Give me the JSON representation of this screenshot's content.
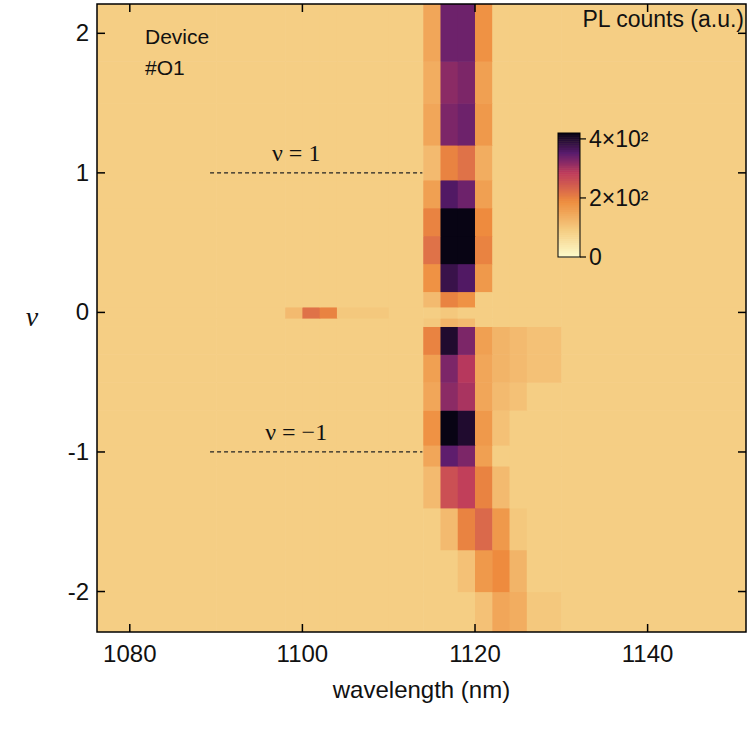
{
  "chart_data": {
    "type": "heatmap",
    "x_label": "wavelength (nm)",
    "y_label": "ν",
    "xlim": [
      1076.2,
      1151.4
    ],
    "ylim": [
      -2.29,
      2.21
    ],
    "xticks": [
      1080,
      1100,
      1120,
      1140
    ],
    "yticks": [
      -2,
      -1,
      0,
      1,
      2
    ],
    "x_edges": [
      1076.2,
      1090,
      1098,
      1100,
      1102,
      1104,
      1110,
      1114,
      1116,
      1118,
      1120,
      1122,
      1124,
      1126,
      1130,
      1151.4
    ],
    "y_edges": [
      -2.29,
      -2.0,
      -1.7,
      -1.4,
      -1.1,
      -0.95,
      -0.7,
      -0.5,
      -0.3,
      -0.1,
      -0.04,
      0.04,
      0.15,
      0.35,
      0.55,
      0.75,
      0.95,
      1.2,
      1.5,
      1.8,
      2.21
    ],
    "cells": [
      [
        90,
        90,
        90,
        90,
        90,
        90,
        90,
        90,
        90,
        90,
        110,
        150,
        140,
        100,
        90
      ],
      [
        90,
        90,
        90,
        90,
        90,
        90,
        90,
        90,
        90,
        110,
        170,
        190,
        130,
        90,
        90
      ],
      [
        90,
        90,
        90,
        90,
        90,
        90,
        90,
        90,
        120,
        200,
        230,
        170,
        100,
        90,
        90
      ],
      [
        90,
        90,
        90,
        90,
        90,
        90,
        90,
        120,
        260,
        280,
        200,
        120,
        90,
        90,
        90
      ],
      [
        90,
        90,
        90,
        90,
        90,
        90,
        90,
        150,
        350,
        330,
        160,
        90,
        90,
        90,
        90
      ],
      [
        90,
        90,
        90,
        90,
        90,
        90,
        90,
        180,
        430,
        400,
        170,
        110,
        90,
        90,
        90
      ],
      [
        90,
        90,
        90,
        90,
        90,
        90,
        90,
        150,
        320,
        300,
        150,
        120,
        110,
        90,
        90
      ],
      [
        90,
        90,
        90,
        90,
        90,
        90,
        90,
        160,
        330,
        290,
        150,
        130,
        120,
        110,
        90
      ],
      [
        90,
        90,
        90,
        90,
        90,
        90,
        90,
        200,
        400,
        330,
        160,
        130,
        120,
        110,
        90
      ],
      [
        90,
        90,
        90,
        90,
        90,
        90,
        90,
        100,
        130,
        120,
        90,
        90,
        90,
        90,
        90
      ],
      [
        90,
        90,
        120,
        220,
        200,
        100,
        90,
        90,
        100,
        90,
        90,
        90,
        90,
        90,
        90
      ],
      [
        90,
        90,
        90,
        90,
        90,
        90,
        90,
        120,
        200,
        180,
        90,
        90,
        90,
        90,
        90
      ],
      [
        90,
        90,
        90,
        90,
        90,
        90,
        90,
        180,
        380,
        360,
        170,
        90,
        90,
        90,
        90
      ],
      [
        90,
        90,
        90,
        90,
        90,
        90,
        90,
        220,
        480,
        490,
        200,
        90,
        90,
        90,
        90
      ],
      [
        90,
        90,
        90,
        90,
        90,
        90,
        90,
        200,
        470,
        450,
        190,
        90,
        90,
        90,
        90
      ],
      [
        90,
        90,
        90,
        90,
        90,
        90,
        90,
        160,
        360,
        340,
        160,
        90,
        90,
        90,
        90
      ],
      [
        90,
        90,
        90,
        90,
        90,
        90,
        90,
        120,
        200,
        220,
        140,
        90,
        90,
        90,
        90
      ],
      [
        90,
        90,
        90,
        90,
        90,
        90,
        90,
        150,
        330,
        340,
        170,
        90,
        90,
        90,
        90
      ],
      [
        90,
        90,
        90,
        90,
        90,
        90,
        90,
        140,
        320,
        330,
        160,
        90,
        90,
        90,
        90
      ],
      [
        90,
        90,
        90,
        90,
        90,
        90,
        90,
        150,
        340,
        340,
        180,
        90,
        90,
        90,
        90
      ]
    ],
    "colorbar": {
      "label": "PL counts (a.u.)",
      "range": [
        0,
        420
      ],
      "ticks": [
        0,
        {
          "value": 200,
          "label": "2×10²"
        },
        {
          "value": 400,
          "label": "4×10²"
        }
      ]
    },
    "annotations": [
      {
        "text": "Device"
      },
      {
        "text": "#O1"
      }
    ],
    "reference_lines": [
      {
        "y": 1,
        "xmin": 1089.3,
        "xmax": 1113.9,
        "label": "ν = 1"
      },
      {
        "y": -1,
        "xmin": 1089.3,
        "xmax": 1113.9,
        "label": "ν = −1"
      }
    ]
  }
}
